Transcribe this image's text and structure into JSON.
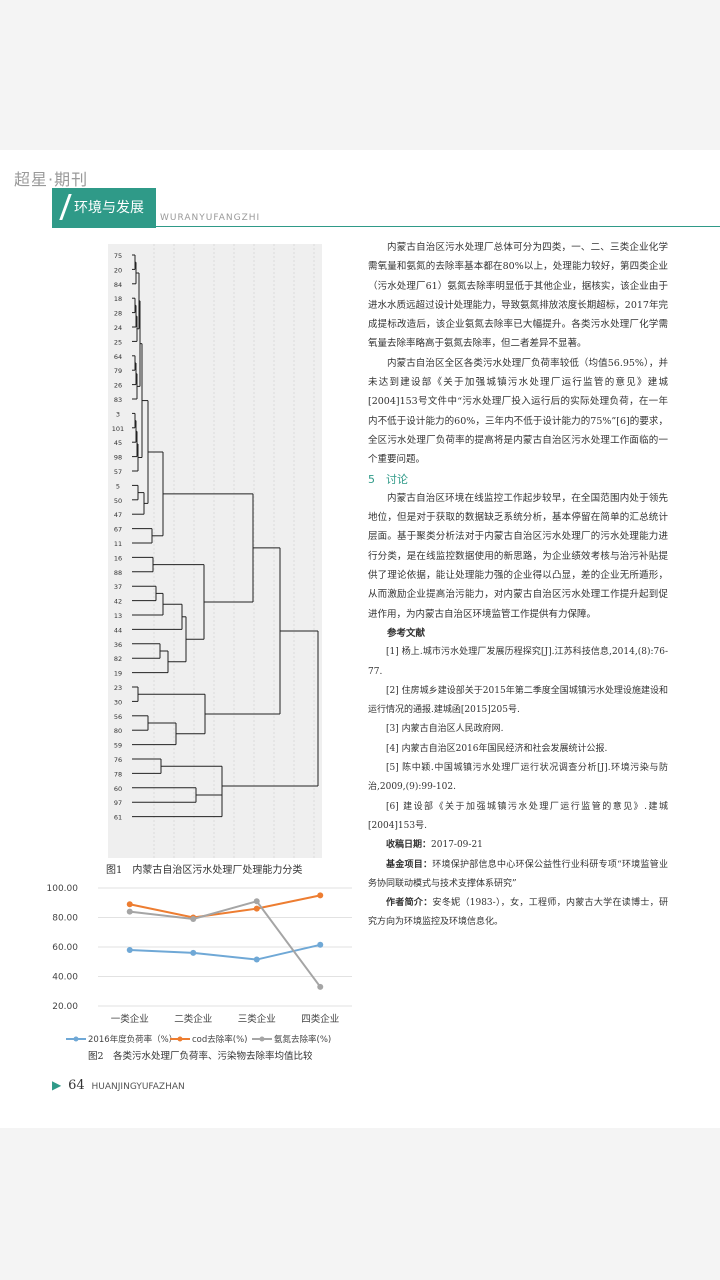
{
  "header": {
    "journal": "超星·期刊",
    "section": "环境与发展",
    "section_en": "WURANYUFANGZHI"
  },
  "figure1": {
    "caption": "图1　内蒙古自治区污水处理厂处理能力分类",
    "labels": [
      "75",
      "20",
      "84",
      "18",
      "28",
      "24",
      "25",
      "64",
      "79",
      "26",
      "83",
      "3",
      "101",
      "45",
      "98",
      "57",
      "5",
      "50",
      "47",
      "67",
      "11",
      "16",
      "88",
      "37",
      "42",
      "13",
      "44",
      "36",
      "82",
      "19",
      "23",
      "30",
      "56",
      "80",
      "59",
      "76",
      "78",
      "60",
      "97",
      "61"
    ]
  },
  "figure2": {
    "caption": "图2　各类污水处理厂负荷率、污染物去除率均值比较"
  },
  "chart_data": {
    "type": "line",
    "categories": [
      "一类企业",
      "二类企业",
      "三类企业",
      "四类企业"
    ],
    "series": [
      {
        "name": "2016年度负荷率（%）",
        "color": "#6fa8d6",
        "values": [
          58,
          56,
          51.5,
          61.5
        ]
      },
      {
        "name": "cod去除率(%)",
        "color": "#ed7d31",
        "values": [
          89,
          80,
          86,
          95
        ]
      },
      {
        "name": "氨氮去除率(%)",
        "color": "#a5a5a5",
        "values": [
          84,
          79,
          91,
          33
        ]
      }
    ],
    "ylim": [
      20,
      100
    ],
    "yticks": [
      "20.00",
      "40.00",
      "60.00",
      "80.00",
      "100.00"
    ],
    "legend": "bottom"
  },
  "body": {
    "p1": "内蒙古自治区污水处理厂总体可分为四类，一、二、三类企业化学需氧量和氨氮的去除率基本都在80%以上，处理能力较好，第四类企业（污水处理厂61）氨氮去除率明显低于其他企业，据核实，该企业由于进水水质远超过设计处理能力，导致氨氮排放浓度长期超标，2017年完成提标改造后，该企业氨氮去除率已大幅提升。各类污水处理厂化学需氧量去除率略高于氨氮去除率，但二者差异不显著。",
    "p2": "内蒙古自治区全区各类污水处理厂负荷率较低（均值56.95%），并未达到建设部《关于加强城镇污水处理厂运行监管的意见》建城[2004]153号文件中“污水处理厂投入运行后的实际处理负荷，在一年内不低于设计能力的60%，三年内不低于设计能力的75%”[6]的要求，全区污水处理厂负荷率的提高将是内蒙古自治区污水处理工作面临的一个重要问题。",
    "h5": "5　讨论",
    "p3": "内蒙古自治区环境在线监控工作起步较早，在全国范围内处于领先地位，但是对于获取的数据缺乏系统分析，基本停留在简单的汇总统计层面。基于聚类分析法对于内蒙古自治区污水处理厂的污水处理能力进行分类，是在线监控数据使用的新思路，为企业绩效考核与治污补贴提供了理论依据，能让处理能力强的企业得以凸显，差的企业无所遁形，从而激励企业提高治污能力，对内蒙古自治区污水处理工作提升起到促进作用，为内蒙古自治区环境监管工作提供有力保障。",
    "refs_title": "参考文献",
    "refs": [
      "[1] 杨上.城市污水处理厂发展历程探究[J].江苏科技信息,2014,(8):76-77.",
      "[2] 住房城乡建设部关于2015年第二季度全国城镇污水处理设施建设和运行情况的通报.建城函[2015]205号.",
      "[3] 内蒙古自治区人民政府网.",
      "[4] 内蒙古自治区2016年国民经济和社会发展统计公报.",
      "[5] 陈中颖.中国城镇污水处理厂运行状况调查分析[J].环境污染与防治,2009,(9):99-102.",
      "[6] 建设部《关于加强城镇污水处理厂运行监管的意见》.建城[2004]153号."
    ],
    "received_label": "收稿日期：",
    "received": "2017-09-21",
    "fund_label": "基金项目：",
    "fund": "环境保护部信息中心环保公益性行业科研专项“环境监管业务协同联动模式与技术支撑体系研究”",
    "author_label": "作者简介：",
    "author": "安冬妮（1983-），女，工程师，内蒙古大学在读博士，研究方向为环境监控及环境信息化。"
  },
  "footer": {
    "page": "64",
    "journal_en": "HUANJINGYUFAZHAN"
  },
  "colors": {
    "accent": "#2f9a88"
  }
}
